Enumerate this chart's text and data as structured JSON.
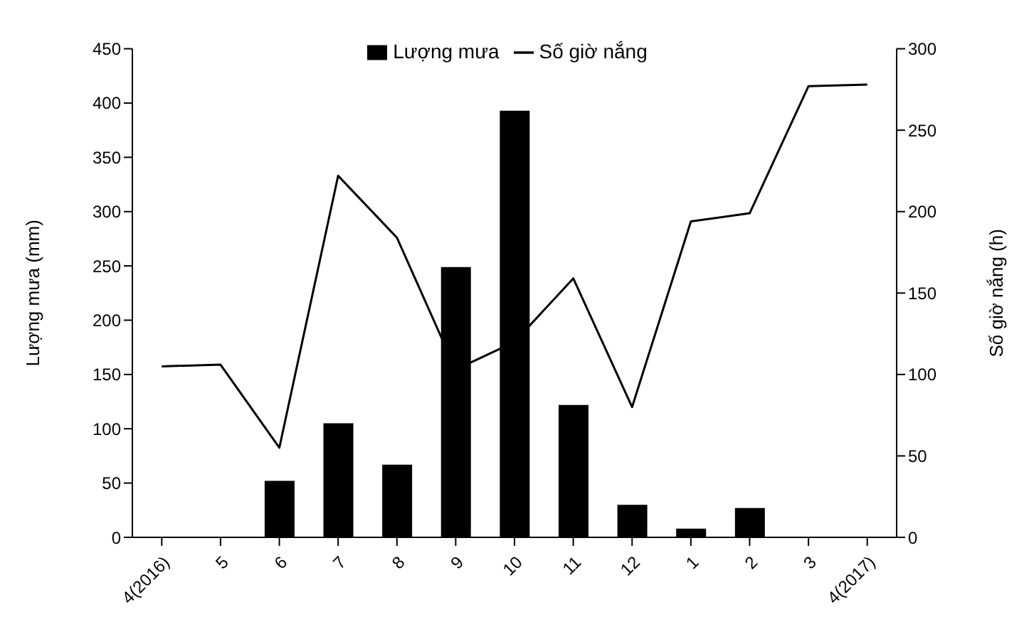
{
  "chart_data": {
    "type": "bar",
    "categories": [
      "4(2016)",
      "5",
      "6",
      "7",
      "8",
      "9",
      "10",
      "11",
      "12",
      "1",
      "2",
      "3",
      "4(2017)"
    ],
    "series": [
      {
        "name": "Lượng mưa",
        "color": "#000000",
        "values": [
          0,
          0,
          52,
          105,
          67,
          249,
          393,
          122,
          30,
          8,
          27,
          0,
          0
        ]
      },
      {
        "name": "Số giờ nắng",
        "type": "line",
        "axis": "y2",
        "color": "#000000",
        "values": [
          105,
          106,
          55,
          222,
          184,
          103,
          120,
          159,
          80,
          194,
          199,
          277,
          278
        ]
      }
    ],
    "ylabel": "Lượng mưa (mm)",
    "y2label": "Số giờ nắng (h)",
    "ylim": [
      0,
      450
    ],
    "yticks": [
      0,
      50,
      100,
      150,
      200,
      250,
      300,
      350,
      400,
      450
    ],
    "y2lim": [
      0,
      300
    ],
    "y2ticks": [
      0,
      50,
      100,
      150,
      200,
      250,
      300
    ],
    "grid": false,
    "legend": "top",
    "marker": "none"
  }
}
